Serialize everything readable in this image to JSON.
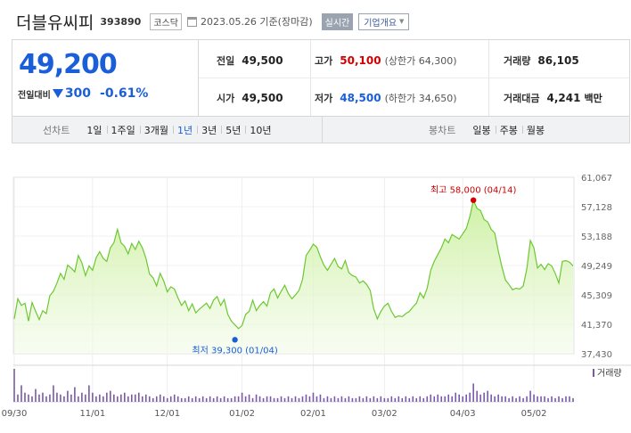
{
  "header": {
    "name": "더블유씨피",
    "code": "393890",
    "market": "코스닥",
    "date": "2023.05.26 기준(장마감)",
    "realtime_btn": "실시간",
    "overview_btn": "기업개요"
  },
  "quote": {
    "price": "49,200",
    "change_label": "전일대비",
    "change_amount": "300",
    "change_pct": "-0.61%",
    "prev_close": {
      "label": "전일",
      "value": "49,500"
    },
    "high": {
      "label": "고가",
      "value": "50,100",
      "sub": "(상한가 64,300)"
    },
    "volume": {
      "label": "거래량",
      "value": "86,105"
    },
    "open": {
      "label": "시가",
      "value": "49,500"
    },
    "low": {
      "label": "저가",
      "value": "48,500",
      "sub": "(하한가 34,650)"
    },
    "trade_value": {
      "label": "거래대금",
      "value": "4,241",
      "unit": "백만"
    }
  },
  "line_tabs": {
    "title": "선차트",
    "items": [
      "1일",
      "1주일",
      "3개월",
      "1년",
      "3년",
      "5년",
      "10년"
    ],
    "active": "1년"
  },
  "candle_tabs": {
    "title": "봉차트",
    "items": [
      "일봉",
      "주봉",
      "월봉"
    ]
  },
  "chart_data": {
    "type": "area",
    "y_ticks": [
      "61,067",
      "57,128",
      "53,188",
      "49,249",
      "45,309",
      "41,370",
      "37,430"
    ],
    "y_tick_values": [
      61067,
      57128,
      53188,
      49249,
      45309,
      41370,
      37430
    ],
    "ylim": [
      37430,
      61067
    ],
    "x_labels": [
      "09/30",
      "11/01",
      "12/01",
      "01/02",
      "02/01",
      "03/02",
      "04/03",
      "05/02"
    ],
    "x_label_index": [
      0,
      22,
      43,
      64,
      84,
      104,
      126,
      146
    ],
    "values": [
      42100,
      44800,
      43900,
      44200,
      41800,
      44300,
      43100,
      42000,
      43200,
      42800,
      45200,
      45800,
      46900,
      48200,
      47400,
      49300,
      48900,
      48400,
      50600,
      49600,
      47900,
      49200,
      48600,
      50300,
      51100,
      50200,
      49800,
      51600,
      52300,
      54100,
      52300,
      51800,
      50800,
      52200,
      51400,
      52500,
      51600,
      50200,
      48100,
      47600,
      46500,
      48200,
      47200,
      45700,
      46400,
      46100,
      44900,
      43900,
      44500,
      43200,
      44100,
      42900,
      43400,
      43800,
      44200,
      43500,
      44600,
      45100,
      43900,
      44700,
      42700,
      41800,
      41300,
      40800,
      41200,
      42700,
      43100,
      44600,
      43200,
      43900,
      44400,
      43800,
      45600,
      46100,
      44900,
      45800,
      46600,
      45500,
      44800,
      45300,
      45900,
      47400,
      50600,
      51300,
      52100,
      51700,
      50400,
      49300,
      48600,
      49400,
      50200,
      49100,
      48800,
      49900,
      48300,
      47900,
      47700,
      46900,
      47200,
      46700,
      45900,
      43400,
      42100,
      43100,
      43800,
      44200,
      43100,
      42300,
      42500,
      42400,
      42800,
      43100,
      43700,
      44200,
      45600,
      44900,
      46200,
      48600,
      49800,
      50700,
      51600,
      52800,
      52300,
      53400,
      53100,
      52800,
      53500,
      54200,
      55800,
      58000,
      56900,
      56600,
      55400,
      55100,
      54100,
      53600,
      51200,
      49100,
      47300,
      46700,
      46000,
      46200,
      46100,
      46500,
      48800,
      52600,
      51600,
      48900,
      49400,
      48700,
      49500,
      49200,
      48200,
      46900,
      49800,
      49900,
      49700,
      49200
    ],
    "volumes": [
      18,
      4,
      9,
      5,
      4,
      3,
      7,
      4,
      5,
      3,
      4,
      9,
      5,
      4,
      3,
      6,
      4,
      8,
      3,
      5,
      4,
      9,
      5,
      3,
      4,
      3,
      5,
      6,
      4,
      3,
      4,
      5,
      3,
      4,
      4,
      5,
      3,
      4,
      3,
      2,
      3,
      4,
      3,
      2,
      3,
      4,
      3,
      2,
      2,
      3,
      2,
      3,
      2,
      3,
      2,
      3,
      2,
      3,
      2,
      3,
      2,
      2,
      3,
      3,
      5,
      3,
      4,
      2,
      4,
      3,
      2,
      3,
      3,
      2,
      2,
      3,
      2,
      3,
      2,
      3,
      2,
      3,
      4,
      3,
      5,
      3,
      4,
      2,
      3,
      2,
      3,
      2,
      3,
      2,
      3,
      2,
      2,
      3,
      2,
      3,
      2,
      3,
      2,
      3,
      2,
      2,
      3,
      2,
      3,
      2,
      3,
      2,
      3,
      2,
      3,
      2,
      3,
      4,
      3,
      4,
      3,
      3,
      4,
      3,
      5,
      4,
      3,
      4,
      5,
      10,
      6,
      4,
      5,
      6,
      4,
      3,
      4,
      3,
      3,
      2,
      3,
      2,
      3,
      2,
      3,
      6,
      4,
      3,
      3,
      3,
      2,
      3,
      2,
      3,
      2,
      3,
      3,
      2
    ],
    "high_label": "최고 58,000 (04/14)",
    "low_label": "최저 39,300 (01/04)",
    "low_value": 39300,
    "low_index": 62,
    "volume_legend": "거래량"
  }
}
